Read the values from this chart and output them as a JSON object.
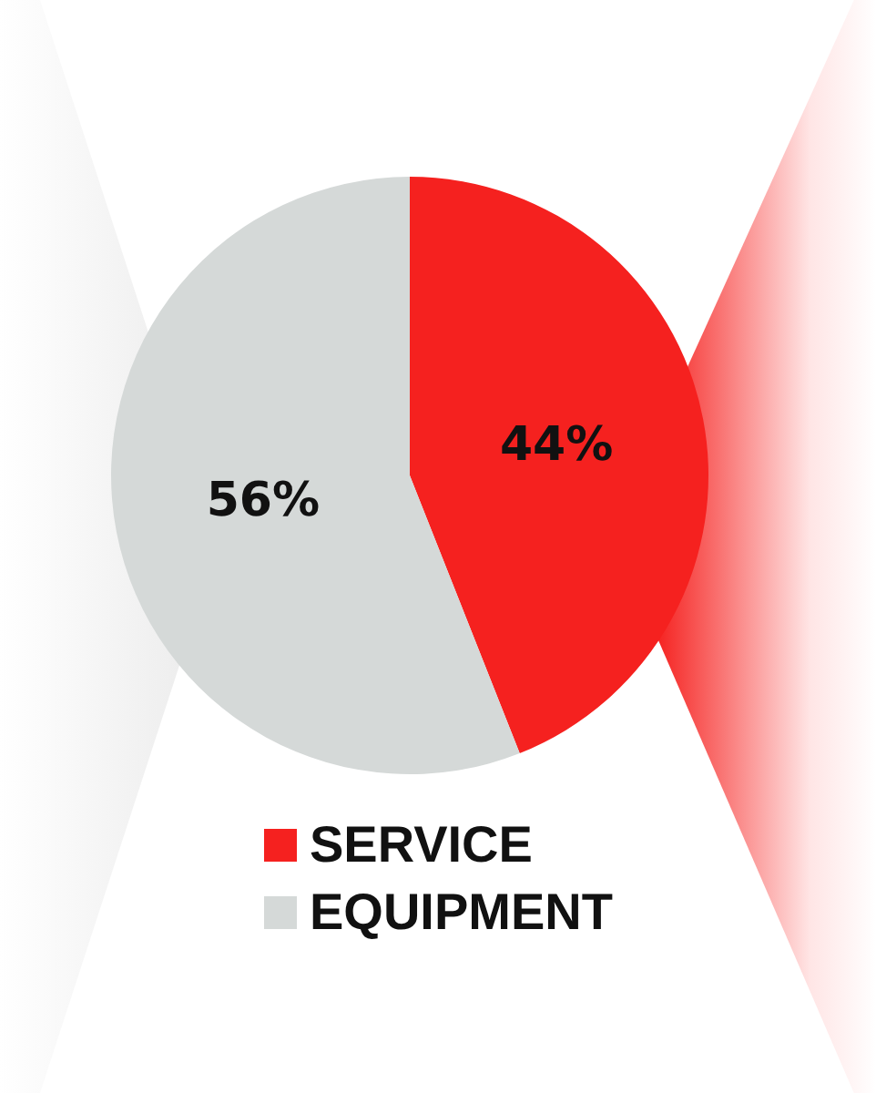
{
  "chart_data": {
    "type": "pie",
    "categories": [
      "SERVICE",
      "EQUIPMENT"
    ],
    "values": [
      44,
      56
    ],
    "colors": [
      "#f5211f",
      "#d5d9d8"
    ],
    "value_labels": [
      "44%",
      "56%"
    ],
    "legend": "bottom"
  }
}
